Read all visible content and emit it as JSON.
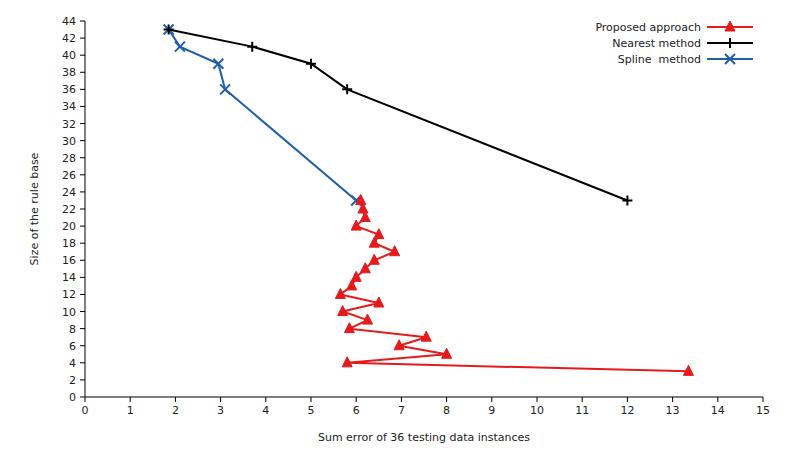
{
  "chart_data": {
    "type": "line",
    "x_label": "Sum error of 36 testing data instances",
    "y_label": "Size of the rule base",
    "xlim": [
      0,
      15
    ],
    "ylim": [
      0,
      44
    ],
    "xticks": [
      0,
      1,
      2,
      3,
      4,
      5,
      6,
      7,
      8,
      9,
      10,
      11,
      12,
      13,
      14,
      15
    ],
    "yticks": [
      0,
      2,
      4,
      6,
      8,
      10,
      12,
      14,
      16,
      18,
      20,
      22,
      24,
      26,
      28,
      30,
      32,
      34,
      36,
      38,
      40,
      42,
      44
    ],
    "grid": false,
    "legend": "top-right",
    "series": [
      {
        "name": "Proposed approach",
        "color": "#e41a1c",
        "marker": "triangle",
        "line_style": "solid",
        "x": [
          6.1,
          6.15,
          6.2,
          6.0,
          6.5,
          6.4,
          6.85,
          6.4,
          6.2,
          6.0,
          5.9,
          5.65,
          6.5,
          5.7,
          6.25,
          5.85,
          7.55,
          6.95,
          8.0,
          5.8,
          13.35
        ],
        "values": [
          23,
          22,
          21,
          20,
          19,
          18,
          17,
          16,
          15,
          14,
          13,
          12,
          11,
          10,
          9,
          8,
          7,
          6,
          5,
          4,
          3
        ]
      },
      {
        "name": "Nearest method",
        "color": "#000000",
        "marker": "plus",
        "line_style": "solid",
        "x": [
          1.85,
          3.7,
          5.0,
          5.8,
          12.0
        ],
        "values": [
          43,
          41,
          39,
          36,
          23
        ]
      },
      {
        "name": "Spline  method",
        "color": "#1f5fa8",
        "marker": "x",
        "line_style": "solid",
        "x": [
          1.85,
          2.1,
          2.95,
          3.1,
          6.0
        ],
        "values": [
          43,
          41,
          39,
          36,
          23
        ]
      }
    ]
  }
}
